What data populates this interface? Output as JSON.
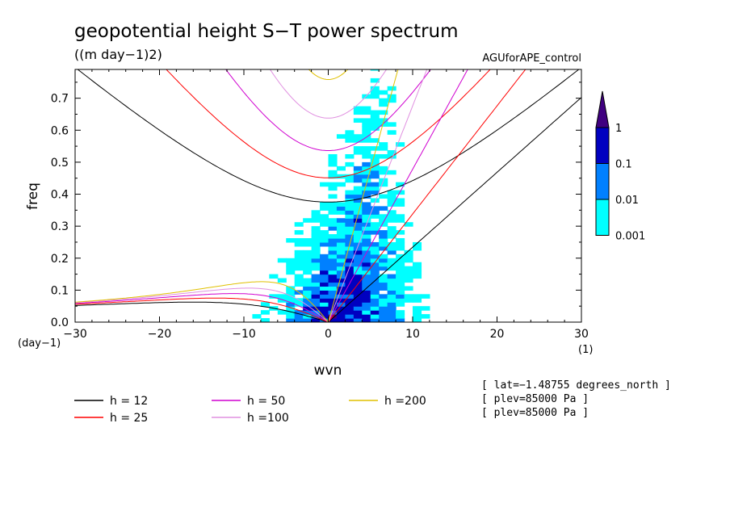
{
  "chart_data": {
    "type": "heatmap",
    "title": "geopotential height S−T power spectrum",
    "subtitle": "((m day−1)2)",
    "dataset_label": "AGUforAPE_control",
    "xlabel": "wvn",
    "ylabel": "freq",
    "x_unit": "(1)",
    "y_unit": "(day−1)",
    "xlim": [
      -30,
      30
    ],
    "ylim": [
      0,
      0.79
    ],
    "x_ticks": [
      -30,
      -20,
      -10,
      0,
      10,
      20,
      30
    ],
    "x_tick_labels": [
      "−30",
      "−20",
      "−10",
      "0",
      "10",
      "20",
      "30"
    ],
    "y_ticks": [
      0.0,
      0.1,
      0.2,
      0.3,
      0.4,
      0.5,
      0.6,
      0.7
    ],
    "y_tick_labels": [
      "0.0",
      "0.1",
      "0.2",
      "0.3",
      "0.4",
      "0.5",
      "0.6",
      "0.7"
    ],
    "colorbar": {
      "levels": [
        0.001,
        0.01,
        0.1,
        1
      ],
      "labels": [
        "0.001",
        "0.01",
        "0.1",
        "1"
      ],
      "colors": [
        "#00ffff",
        "#0080ff",
        "#0000c0",
        "#400080"
      ]
    },
    "dispersion_curves": [
      {
        "label": "h = 12",
        "h": 12,
        "color": "#000000"
      },
      {
        "label": "h = 25",
        "h": 25,
        "color": "#ff0000"
      },
      {
        "label": "h = 50",
        "h": 50,
        "color": "#d000d0"
      },
      {
        "label": "h =100",
        "h": 100,
        "color": "#e090e0"
      },
      {
        "label": "h =200",
        "h": 200,
        "color": "#e0c000"
      }
    ],
    "annotations": [
      "[ lat=−1.48755 degrees_north ]",
      "[ plev=85000 Pa ]",
      "[ plev=85000 Pa ]"
    ]
  }
}
